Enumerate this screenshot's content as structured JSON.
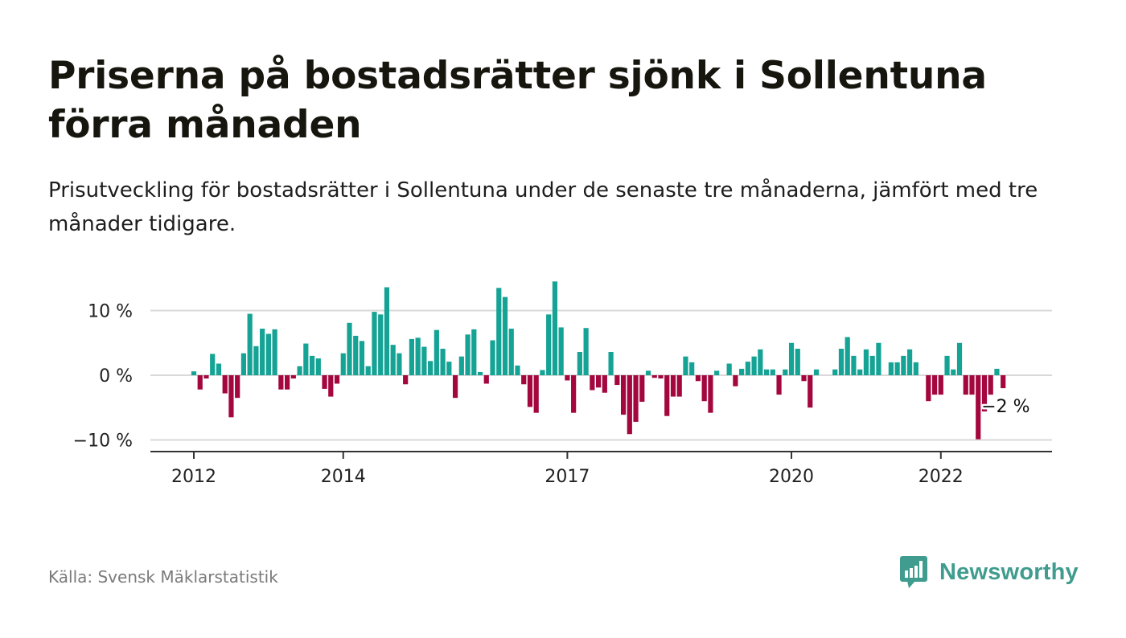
{
  "header": {
    "title": "Priserna på bostadsrätter sjönk i Sollentuna förra månaden",
    "subtitle": "Prisutveckling för bostadsrätter i Sollentuna under de senaste tre månaderna, jämfört med tre månader tidigare."
  },
  "footer": {
    "source": "Källa: Svensk Mäklarstatistik",
    "brand": "Newsworthy",
    "brand_icon": "bar-chart-speech-bubble-icon"
  },
  "colors": {
    "positive": "#15a395",
    "negative": "#a3073e",
    "grid": "#d9d9d9",
    "axis": "#333333",
    "brand": "#3f9c8e"
  },
  "chart_data": {
    "type": "bar",
    "unit": "%",
    "ylim": [
      -11.5,
      12.5
    ],
    "yticks": [
      {
        "value": 10,
        "label": "10 %"
      },
      {
        "value": 0,
        "label": "0 %"
      },
      {
        "value": -10,
        "label": "−10 %"
      }
    ],
    "xticks": [
      {
        "index": 0,
        "label": "2012"
      },
      {
        "index": 24,
        "label": "2014"
      },
      {
        "index": 60,
        "label": "2017"
      },
      {
        "index": 96,
        "label": "2020"
      },
      {
        "index": 120,
        "label": "2022"
      }
    ],
    "grid": true,
    "last_label": "−2 %",
    "x_start": "2012-01",
    "x_end": "2023-03",
    "values": [
      0.6,
      -2.2,
      -0.5,
      3.3,
      1.8,
      -2.8,
      -6.5,
      -3.5,
      3.4,
      9.5,
      4.5,
      7.2,
      6.4,
      7.1,
      -2.2,
      -2.2,
      -0.5,
      1.4,
      4.9,
      3.0,
      2.6,
      -2.1,
      -3.3,
      -1.3,
      3.4,
      8.1,
      6.1,
      5.3,
      1.4,
      9.8,
      9.4,
      13.6,
      4.7,
      3.4,
      -1.4,
      5.6,
      5.8,
      4.4,
      2.2,
      7.0,
      4.1,
      2.1,
      -3.5,
      2.9,
      6.3,
      7.1,
      0.5,
      -1.3,
      5.4,
      13.5,
      12.1,
      7.2,
      1.5,
      -1.4,
      -4.9,
      -5.8,
      0.8,
      9.4,
      14.5,
      7.4,
      -0.8,
      -5.8,
      3.6,
      7.3,
      -2.3,
      -1.9,
      -2.7,
      3.6,
      -1.5,
      -6.1,
      -9.1,
      -7.2,
      -4.1,
      0.7,
      -0.4,
      -0.5,
      -6.3,
      -3.3,
      -3.3,
      2.9,
      2.0,
      -0.9,
      -4.0,
      -5.8,
      0.7,
      0.0,
      1.8,
      -1.7,
      1.0,
      2.1,
      2.9,
      4.0,
      0.9,
      0.9,
      -3.0,
      0.9,
      5.0,
      4.1,
      -0.9,
      -5.0,
      0.9,
      0.0,
      0.0,
      0.9,
      4.1,
      5.9,
      3.0,
      0.9,
      4.0,
      3.0,
      5.0,
      0.0,
      2.0,
      2.0,
      3.0,
      4.0,
      2.0,
      0.0,
      -4.0,
      -3.0,
      -3.0,
      3.0,
      0.9,
      5.0,
      -3.0,
      -3.0,
      -9.9,
      -5.6,
      -3.0,
      1.0,
      -2.0
    ]
  }
}
